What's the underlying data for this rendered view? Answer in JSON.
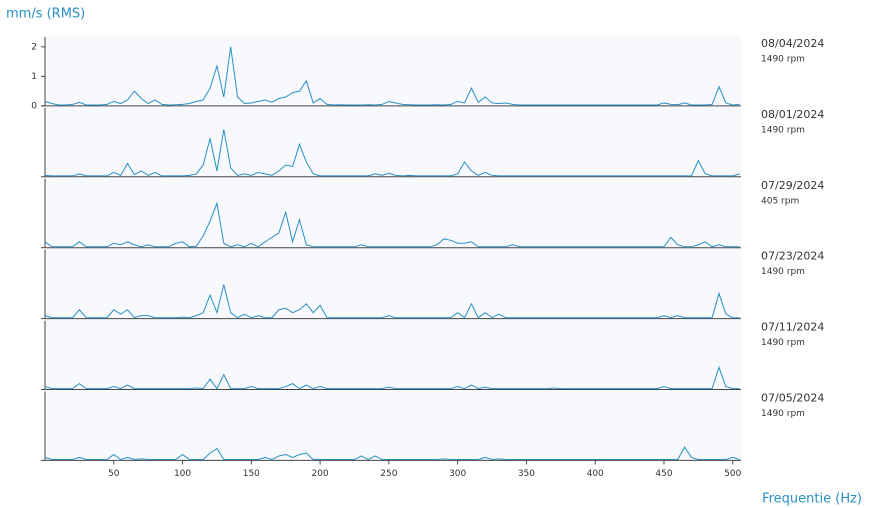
{
  "chart_data": {
    "type": "line",
    "ylabel": "mm/s (RMS)",
    "xlabel": "Frequentie (Hz)",
    "xlim": [
      0,
      506
    ],
    "xticks": [
      50,
      100,
      150,
      200,
      250,
      300,
      350,
      400,
      450,
      500
    ],
    "ylim": [
      0,
      2.4
    ],
    "yticks": [
      0,
      1,
      2
    ],
    "x": [
      0,
      5,
      10,
      15,
      20,
      25,
      30,
      35,
      40,
      45,
      50,
      55,
      60,
      65,
      70,
      75,
      80,
      85,
      90,
      95,
      100,
      105,
      110,
      115,
      120,
      125,
      130,
      135,
      140,
      145,
      150,
      155,
      160,
      165,
      170,
      175,
      180,
      185,
      190,
      195,
      200,
      205,
      210,
      215,
      220,
      225,
      230,
      235,
      240,
      245,
      250,
      255,
      260,
      265,
      270,
      275,
      280,
      285,
      290,
      295,
      300,
      305,
      310,
      315,
      320,
      325,
      330,
      335,
      340,
      345,
      350,
      355,
      360,
      365,
      370,
      375,
      380,
      385,
      390,
      395,
      400,
      405,
      410,
      415,
      420,
      425,
      430,
      435,
      440,
      445,
      450,
      455,
      460,
      465,
      470,
      475,
      480,
      485,
      490,
      495,
      500,
      505
    ],
    "series": [
      {
        "name": "08/04/2024",
        "rpm": "1490 rpm",
        "color": "#2a8fc7",
        "values": [
          0.15,
          0.08,
          0.03,
          0.03,
          0.05,
          0.12,
          0.03,
          0.03,
          0.03,
          0.05,
          0.15,
          0.08,
          0.2,
          0.5,
          0.25,
          0.08,
          0.2,
          0.05,
          0.03,
          0.04,
          0.05,
          0.08,
          0.15,
          0.2,
          0.6,
          1.35,
          0.3,
          2.0,
          0.3,
          0.08,
          0.1,
          0.15,
          0.2,
          0.12,
          0.25,
          0.3,
          0.45,
          0.5,
          0.85,
          0.1,
          0.25,
          0.05,
          0.03,
          0.04,
          0.03,
          0.03,
          0.03,
          0.04,
          0.03,
          0.05,
          0.15,
          0.1,
          0.05,
          0.04,
          0.03,
          0.03,
          0.03,
          0.04,
          0.03,
          0.05,
          0.15,
          0.1,
          0.6,
          0.12,
          0.3,
          0.1,
          0.08,
          0.1,
          0.05,
          0.03,
          0.03,
          0.03,
          0.03,
          0.03,
          0.03,
          0.03,
          0.03,
          0.03,
          0.03,
          0.03,
          0.03,
          0.03,
          0.03,
          0.03,
          0.03,
          0.03,
          0.03,
          0.03,
          0.03,
          0.03,
          0.1,
          0.05,
          0.04,
          0.1,
          0.03,
          0.03,
          0.03,
          0.05,
          0.65,
          0.1,
          0.03,
          0.05
        ]
      },
      {
        "name": "08/01/2024",
        "rpm": "1490 rpm",
        "color": "#2a8fc7",
        "values": [
          0.05,
          0.03,
          0.03,
          0.03,
          0.03,
          0.1,
          0.03,
          0.03,
          0.03,
          0.03,
          0.15,
          0.05,
          0.45,
          0.08,
          0.2,
          0.05,
          0.15,
          0.03,
          0.03,
          0.03,
          0.03,
          0.05,
          0.1,
          0.4,
          1.3,
          0.2,
          1.6,
          0.3,
          0.05,
          0.1,
          0.05,
          0.15,
          0.1,
          0.05,
          0.2,
          0.4,
          0.35,
          1.1,
          0.5,
          0.1,
          0.03,
          0.03,
          0.03,
          0.03,
          0.03,
          0.03,
          0.03,
          0.03,
          0.1,
          0.05,
          0.12,
          0.05,
          0.03,
          0.05,
          0.03,
          0.03,
          0.03,
          0.03,
          0.03,
          0.03,
          0.1,
          0.5,
          0.2,
          0.05,
          0.15,
          0.05,
          0.03,
          0.03,
          0.03,
          0.03,
          0.03,
          0.03,
          0.03,
          0.03,
          0.03,
          0.03,
          0.03,
          0.03,
          0.03,
          0.03,
          0.03,
          0.03,
          0.03,
          0.03,
          0.03,
          0.03,
          0.03,
          0.03,
          0.03,
          0.03,
          0.03,
          0.03,
          0.03,
          0.03,
          0.03,
          0.55,
          0.1,
          0.03,
          0.03,
          0.03,
          0.03,
          0.1
        ]
      },
      {
        "name": "07/29/2024",
        "rpm": "405 rpm",
        "color": "#2a8fc7",
        "values": [
          0.2,
          0.03,
          0.03,
          0.03,
          0.03,
          0.2,
          0.03,
          0.03,
          0.03,
          0.03,
          0.15,
          0.1,
          0.2,
          0.1,
          0.03,
          0.1,
          0.03,
          0.03,
          0.03,
          0.15,
          0.2,
          0.03,
          0.05,
          0.4,
          0.9,
          1.5,
          0.15,
          0.03,
          0.1,
          0.03,
          0.15,
          0.03,
          0.2,
          0.35,
          0.5,
          1.2,
          0.2,
          0.95,
          0.1,
          0.03,
          0.03,
          0.03,
          0.03,
          0.03,
          0.03,
          0.03,
          0.1,
          0.03,
          0.03,
          0.03,
          0.03,
          0.03,
          0.03,
          0.03,
          0.03,
          0.03,
          0.03,
          0.1,
          0.3,
          0.25,
          0.15,
          0.15,
          0.2,
          0.03,
          0.03,
          0.03,
          0.03,
          0.03,
          0.1,
          0.03,
          0.03,
          0.03,
          0.03,
          0.03,
          0.03,
          0.03,
          0.03,
          0.03,
          0.03,
          0.03,
          0.03,
          0.03,
          0.03,
          0.03,
          0.03,
          0.03,
          0.03,
          0.03,
          0.03,
          0.03,
          0.03,
          0.35,
          0.1,
          0.03,
          0.03,
          0.1,
          0.2,
          0.03,
          0.1,
          0.03,
          0.03,
          0.03
        ]
      },
      {
        "name": "07/23/2024",
        "rpm": "1490 rpm",
        "color": "#2a8fc7",
        "values": [
          0.1,
          0.03,
          0.03,
          0.03,
          0.03,
          0.3,
          0.03,
          0.03,
          0.03,
          0.03,
          0.3,
          0.15,
          0.3,
          0.03,
          0.1,
          0.1,
          0.03,
          0.03,
          0.03,
          0.03,
          0.05,
          0.03,
          0.1,
          0.2,
          0.8,
          0.2,
          1.15,
          0.2,
          0.03,
          0.15,
          0.03,
          0.1,
          0.03,
          0.03,
          0.3,
          0.35,
          0.2,
          0.3,
          0.5,
          0.2,
          0.45,
          0.03,
          0.03,
          0.03,
          0.03,
          0.03,
          0.03,
          0.03,
          0.03,
          0.03,
          0.1,
          0.03,
          0.03,
          0.03,
          0.03,
          0.03,
          0.03,
          0.03,
          0.03,
          0.03,
          0.2,
          0.03,
          0.5,
          0.03,
          0.2,
          0.03,
          0.15,
          0.03,
          0.03,
          0.03,
          0.03,
          0.03,
          0.03,
          0.03,
          0.03,
          0.03,
          0.03,
          0.03,
          0.03,
          0.03,
          0.03,
          0.03,
          0.03,
          0.03,
          0.03,
          0.03,
          0.03,
          0.03,
          0.03,
          0.03,
          0.1,
          0.03,
          0.1,
          0.03,
          0.03,
          0.03,
          0.03,
          0.03,
          0.85,
          0.15,
          0.03,
          0.03
        ]
      },
      {
        "name": "07/11/2024",
        "rpm": "1490 rpm",
        "color": "#2a8fc7",
        "values": [
          0.1,
          0.03,
          0.03,
          0.03,
          0.03,
          0.2,
          0.03,
          0.03,
          0.03,
          0.03,
          0.1,
          0.03,
          0.15,
          0.03,
          0.03,
          0.03,
          0.03,
          0.03,
          0.03,
          0.03,
          0.03,
          0.03,
          0.05,
          0.03,
          0.35,
          0.03,
          0.5,
          0.03,
          0.03,
          0.03,
          0.1,
          0.03,
          0.03,
          0.03,
          0.03,
          0.1,
          0.2,
          0.03,
          0.15,
          0.03,
          0.1,
          0.03,
          0.03,
          0.03,
          0.03,
          0.03,
          0.03,
          0.03,
          0.03,
          0.03,
          0.08,
          0.03,
          0.03,
          0.03,
          0.03,
          0.03,
          0.03,
          0.03,
          0.03,
          0.03,
          0.1,
          0.03,
          0.15,
          0.03,
          0.08,
          0.03,
          0.03,
          0.03,
          0.03,
          0.03,
          0.03,
          0.03,
          0.03,
          0.03,
          0.05,
          0.03,
          0.03,
          0.03,
          0.03,
          0.03,
          0.03,
          0.03,
          0.03,
          0.03,
          0.03,
          0.03,
          0.03,
          0.03,
          0.03,
          0.03,
          0.1,
          0.03,
          0.03,
          0.03,
          0.03,
          0.03,
          0.03,
          0.03,
          0.75,
          0.1,
          0.03,
          0.03
        ]
      },
      {
        "name": "07/05/2024",
        "rpm": "1490 rpm",
        "color": "#2a8fc7",
        "values": [
          0.1,
          0.03,
          0.03,
          0.03,
          0.03,
          0.1,
          0.03,
          0.03,
          0.03,
          0.03,
          0.2,
          0.03,
          0.1,
          0.03,
          0.05,
          0.03,
          0.03,
          0.03,
          0.03,
          0.03,
          0.2,
          0.03,
          0.03,
          0.03,
          0.25,
          0.4,
          0.03,
          0.03,
          0.03,
          0.03,
          0.03,
          0.03,
          0.1,
          0.03,
          0.15,
          0.2,
          0.1,
          0.2,
          0.25,
          0.03,
          0.03,
          0.03,
          0.03,
          0.03,
          0.03,
          0.03,
          0.15,
          0.03,
          0.15,
          0.03,
          0.03,
          0.03,
          0.03,
          0.03,
          0.03,
          0.03,
          0.03,
          0.03,
          0.05,
          0.03,
          0.03,
          0.03,
          0.03,
          0.03,
          0.1,
          0.03,
          0.05,
          0.03,
          0.03,
          0.03,
          0.03,
          0.03,
          0.03,
          0.03,
          0.03,
          0.03,
          0.03,
          0.03,
          0.03,
          0.03,
          0.03,
          0.03,
          0.03,
          0.03,
          0.03,
          0.03,
          0.03,
          0.03,
          0.03,
          0.03,
          0.03,
          0.03,
          0.03,
          0.45,
          0.1,
          0.03,
          0.03,
          0.03,
          0.03,
          0.03,
          0.1,
          0.03
        ]
      }
    ]
  }
}
